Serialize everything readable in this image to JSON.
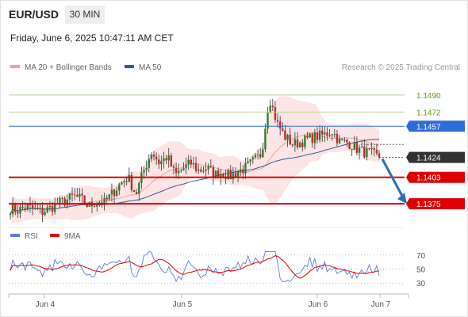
{
  "header": {
    "symbol": "EUR/USD",
    "timeframe": "30 MIN"
  },
  "datetime": "Friday, June 6, 2025 10:47:11 AM CET",
  "legend": {
    "ma20_label": "MA 20 + Bollinger Bands",
    "ma50_label": "MA 50"
  },
  "credit": "Research © 2025 Trading Central",
  "rsi_legend": {
    "rsi_label": "RSI",
    "ma_label": "9MA"
  },
  "colors": {
    "ma20": "#f08080",
    "ma50": "#2e5c9a",
    "bullish": "#2e7d32",
    "bearish": "#c62828",
    "resistance": "#8bc34a",
    "support": "#e00000",
    "pivot": "#2e6dd8",
    "current": "#333333"
  },
  "chart_data": {
    "type": "candlestick",
    "x_ticks": [
      "Jun 4",
      "Jun 5",
      "Jun 6",
      "Jun 7"
    ],
    "levels": [
      {
        "value": 1.149,
        "label": "1.1490",
        "kind": "resistance"
      },
      {
        "value": 1.1472,
        "label": "1.1472",
        "kind": "resistance"
      },
      {
        "value": 1.1457,
        "label": "1.1457",
        "kind": "pivot"
      },
      {
        "value": 1.1424,
        "label": "1.1424",
        "kind": "current"
      },
      {
        "value": 1.1403,
        "label": "1.1403",
        "kind": "support"
      },
      {
        "value": 1.1375,
        "label": "1.1375",
        "kind": "support"
      }
    ],
    "price_range": [
      1.136,
      1.1505
    ],
    "close_path": [
      1.137,
      1.1368,
      1.1372,
      1.1369,
      1.1366,
      1.137,
      1.1375,
      1.1378,
      1.1383,
      1.138,
      1.1372,
      1.1378,
      1.1376,
      1.1386,
      1.1396,
      1.1403,
      1.1385,
      1.141,
      1.143,
      1.1418,
      1.1425,
      1.1405,
      1.1412,
      1.1418,
      1.141,
      1.1413,
      1.1406,
      1.1408,
      1.1404,
      1.1409,
      1.1413,
      1.142,
      1.1428,
      1.1488,
      1.146,
      1.1446,
      1.1438,
      1.144,
      1.1444,
      1.1446,
      1.1448,
      1.1452,
      1.144,
      1.144,
      1.1434,
      1.143,
      1.1428,
      1.1424
    ],
    "rsi": {
      "ticks": [
        70,
        50,
        30
      ],
      "range": [
        20,
        80
      ]
    }
  }
}
